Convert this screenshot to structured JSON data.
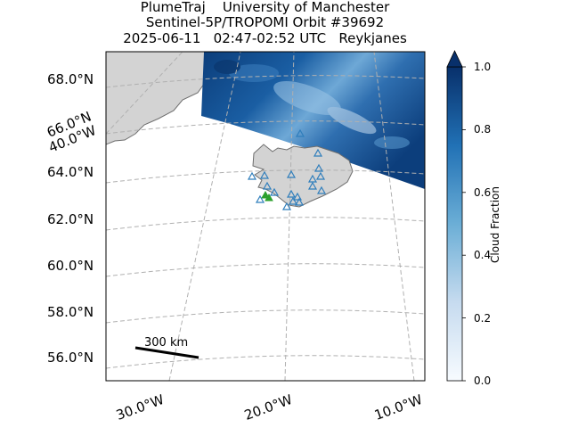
{
  "title": {
    "line1": "PlumeTraj    University of Manchester",
    "line2": "Sentinel-5P/TROPOMI Orbit #39692",
    "line3": "2025-06-11   02:47-02:52 UTC   Reykjanes"
  },
  "latitude_labels": [
    "68.0°N",
    "66.0°N",
    "64.0°N",
    "62.0°N",
    "60.0°N",
    "58.0°N",
    "56.0°N"
  ],
  "longitude_labels": [
    "40.0°W",
    "30.0°W",
    "20.0°W",
    "10.0°W"
  ],
  "scale_bar": {
    "label": "300 km"
  },
  "colorbar": {
    "label": "Cloud Fraction",
    "ticks": [
      "1.0",
      "0.8",
      "0.6",
      "0.4",
      "0.2",
      "0.0"
    ],
    "colormap": "Blues",
    "range": [
      0.0,
      1.0
    ]
  },
  "colors": {
    "land": "#d3d3d3",
    "coastline": "#6e6e6e",
    "gridlines": "#b0b0b0",
    "volcano_markers": "#2f7ebc",
    "source_marker": "#2ca02c",
    "scale_bar": "#000000"
  },
  "legend_markers": {
    "volcanoes": "open blue triangles",
    "source": "green triangle (Reykjanes)"
  }
}
